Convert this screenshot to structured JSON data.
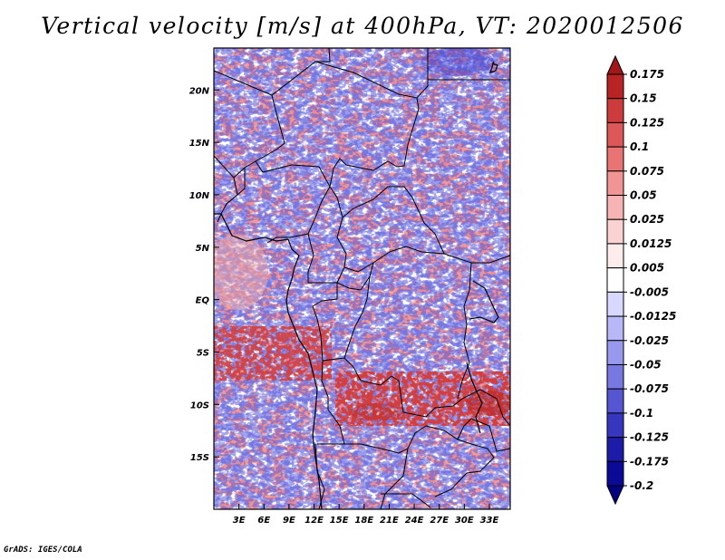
{
  "title": "Vertical velocity [m/s] at 400hPa, VT: 2020012506",
  "credit": "GrADS: IGES/COLA",
  "map": {
    "lon_range": [
      0,
      35.5
    ],
    "lat_range": [
      -20,
      24
    ],
    "lat_ticks": [
      {
        "value": 20,
        "label": "20N"
      },
      {
        "value": 15,
        "label": "15N"
      },
      {
        "value": 10,
        "label": "10N"
      },
      {
        "value": 5,
        "label": "5N"
      },
      {
        "value": 0,
        "label": "EQ"
      },
      {
        "value": -5,
        "label": "5S"
      },
      {
        "value": -10,
        "label": "10S"
      },
      {
        "value": -15,
        "label": "15S"
      }
    ],
    "lon_ticks": [
      {
        "value": 3,
        "label": "3E"
      },
      {
        "value": 6,
        "label": "6E"
      },
      {
        "value": 9,
        "label": "9E"
      },
      {
        "value": 12,
        "label": "12E"
      },
      {
        "value": 15,
        "label": "15E"
      },
      {
        "value": 18,
        "label": "18E"
      },
      {
        "value": 21,
        "label": "21E"
      },
      {
        "value": 24,
        "label": "24E"
      },
      {
        "value": 27,
        "label": "27E"
      },
      {
        "value": 30,
        "label": "30E"
      },
      {
        "value": 33,
        "label": "33E"
      }
    ]
  },
  "colorbar": {
    "labels": [
      "0.175",
      "0.15",
      "0.125",
      "0.1",
      "0.075",
      "0.05",
      "0.025",
      "0.0125",
      "0.005",
      "-0.005",
      "-0.0125",
      "-0.025",
      "-0.05",
      "-0.075",
      "-0.1",
      "-0.125",
      "-0.175",
      "-0.2"
    ],
    "colors": [
      "#a01818",
      "#b82424",
      "#cc3c3c",
      "#dc5858",
      "#e87474",
      "#f09494",
      "#f6b4b4",
      "#fad2d2",
      "#fdecec",
      "#ffffff",
      "#d8d8ff",
      "#b8b8f8",
      "#9898ee",
      "#7878e2",
      "#5656d2",
      "#3636be",
      "#1c1ca8",
      "#0a0a96",
      "#000080"
    ]
  }
}
